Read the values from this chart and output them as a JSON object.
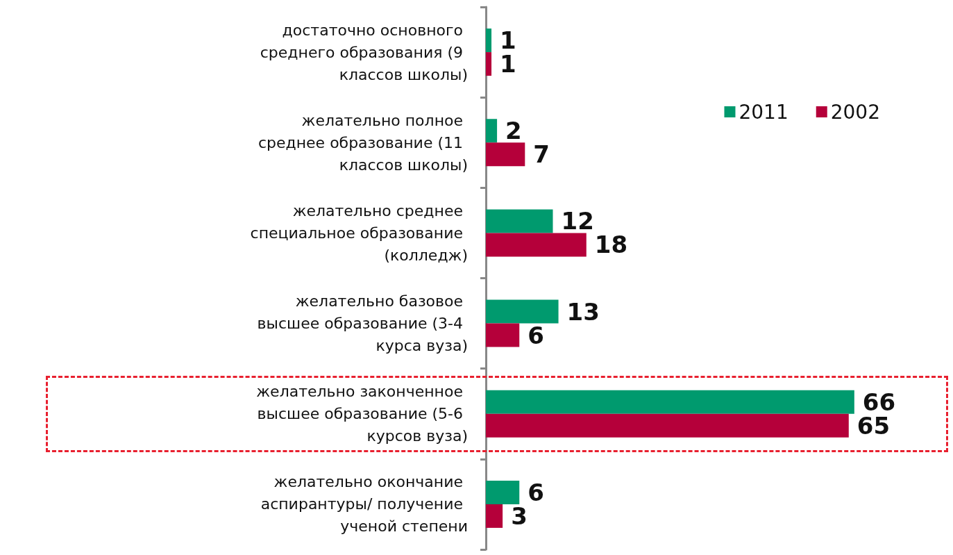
{
  "chart_data": {
    "type": "bar",
    "orientation": "horizontal",
    "categories": [
      "достаточно основного среднего образования (9 классов школы)",
      "желательно полное среднее образование (11 классов школы)",
      "желательно среднее специальное образование (колледж)",
      "желательно базовое высшее образование (3-4 курса вуза)",
      "желательно законченное высшее образование (5-6 курсов вуза)",
      "желательно окончание аспирантуры/ получение ученой степени"
    ],
    "series": [
      {
        "name": "2011",
        "color": "#009a6e",
        "values": [
          1,
          2,
          12,
          13,
          66,
          6
        ]
      },
      {
        "name": "2002",
        "color": "#b5003a",
        "values": [
          1,
          7,
          18,
          6,
          65,
          3
        ]
      }
    ],
    "data_labels": true,
    "legend": "top right",
    "grid": false
  }
}
